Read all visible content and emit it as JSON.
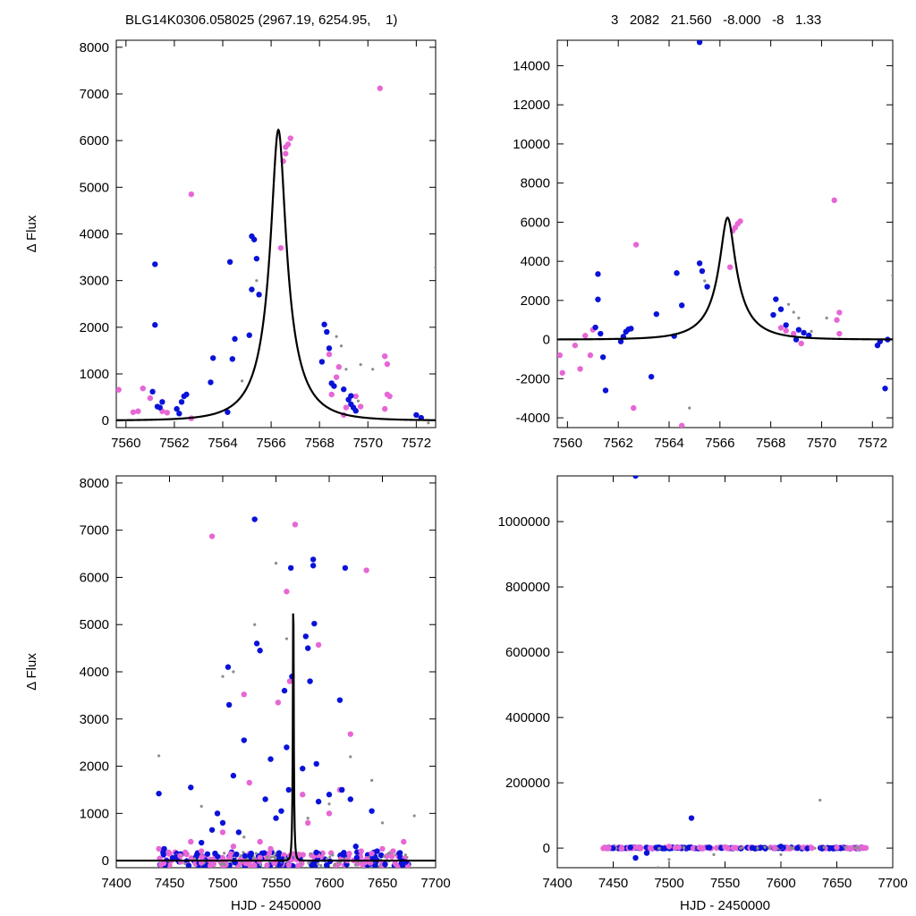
{
  "header": {
    "left": "BLG14K0306.058025 (2967.19, 6254.95,    1)",
    "right": "3   2082   21.560   -8.000   -8   1.33"
  },
  "colors": {
    "blue": "#0a12d8",
    "magenta": "#e766d5",
    "gray": "#8c8c8c",
    "curve": "#000000"
  },
  "chart_data": [
    {
      "type": "scatter",
      "panel": "top-left",
      "xlabel": "",
      "ylabel": "Δ Flux",
      "xlim": [
        7559.6,
        7572.8
      ],
      "ylim": [
        -150,
        8150
      ],
      "xticks": [
        7560,
        7562,
        7564,
        7566,
        7568,
        7570,
        7572
      ],
      "yticks": [
        0,
        1000,
        2000,
        3000,
        4000,
        5000,
        6000,
        7000,
        8000
      ],
      "model": "Paczynski peak ~6230 at HJD-2450000 = 7566.3",
      "series": [
        {
          "color": "blue",
          "points": [
            [
              7561.2,
              3350
            ],
            [
              7561.2,
              2050
            ],
            [
              7561.1,
              620
            ],
            [
              7561.3,
              300
            ],
            [
              7561.5,
              400
            ],
            [
              7561.4,
              280
            ],
            [
              7562.2,
              150
            ],
            [
              7562.3,
              400
            ],
            [
              7562.4,
              520
            ],
            [
              7562.5,
              560
            ],
            [
              7562.1,
              250
            ],
            [
              7563.5,
              820
            ],
            [
              7563.6,
              1340
            ],
            [
              7564.2,
              180
            ],
            [
              7564.3,
              3400
            ],
            [
              7564.4,
              1320
            ],
            [
              7564.5,
              1750
            ],
            [
              7565.1,
              1830
            ],
            [
              7565.2,
              2810
            ],
            [
              7565.3,
              3880
            ],
            [
              7565.4,
              3470
            ],
            [
              7565.5,
              2700
            ],
            [
              7565.2,
              3950
            ],
            [
              7568.1,
              1260
            ],
            [
              7568.2,
              2060
            ],
            [
              7568.3,
              1900
            ],
            [
              7568.4,
              1550
            ],
            [
              7568.5,
              800
            ],
            [
              7568.6,
              740
            ],
            [
              7569.0,
              670
            ],
            [
              7569.2,
              450
            ],
            [
              7569.3,
              350
            ],
            [
              7569.4,
              280
            ],
            [
              7569.5,
              210
            ],
            [
              7569.3,
              530
            ],
            [
              7572.0,
              120
            ],
            [
              7572.2,
              60
            ]
          ]
        },
        {
          "color": "magenta",
          "points": [
            [
              7559.7,
              660
            ],
            [
              7560.3,
              180
            ],
            [
              7560.5,
              200
            ],
            [
              7560.7,
              690
            ],
            [
              7561.0,
              480
            ],
            [
              7561.5,
              200
            ],
            [
              7561.7,
              170
            ],
            [
              7562.7,
              4850
            ],
            [
              7562.7,
              50
            ],
            [
              7566.5,
              5560
            ],
            [
              7566.6,
              5720
            ],
            [
              7566.7,
              5920
            ],
            [
              7566.8,
              6050
            ],
            [
              7566.6,
              5860
            ],
            [
              7566.4,
              3700
            ],
            [
              7568.4,
              1420
            ],
            [
              7568.5,
              560
            ],
            [
              7568.7,
              930
            ],
            [
              7568.8,
              1150
            ],
            [
              7569.0,
              120
            ],
            [
              7569.1,
              280
            ],
            [
              7569.5,
              520
            ],
            [
              7569.7,
              300
            ],
            [
              7570.5,
              7120
            ],
            [
              7570.7,
              1380
            ],
            [
              7570.8,
              1210
            ],
            [
              7570.8,
              560
            ],
            [
              7570.9,
              520
            ],
            [
              7570.7,
              250
            ]
          ]
        },
        {
          "color": "gray",
          "points": [
            [
              7564.8,
              850
            ],
            [
              7565.4,
              3000
            ],
            [
              7568.7,
              1800
            ],
            [
              7568.9,
              1600
            ],
            [
              7569.1,
              1100
            ],
            [
              7569.6,
              420
            ],
            [
              7569.7,
              1200
            ],
            [
              7570.2,
              1100
            ],
            [
              7572.8,
              3280
            ],
            [
              7572.5,
              -50
            ]
          ]
        }
      ]
    },
    {
      "type": "scatter",
      "panel": "top-right",
      "xlabel": "",
      "ylabel": "",
      "xlim": [
        7559.6,
        7572.8
      ],
      "ylim": [
        -4500,
        15300
      ],
      "xticks": [
        7560,
        7562,
        7564,
        7566,
        7568,
        7570,
        7572
      ],
      "yticks": [
        -4000,
        -2000,
        0,
        2000,
        4000,
        6000,
        8000,
        10000,
        12000,
        14000
      ],
      "series": [
        {
          "color": "blue",
          "points": [
            [
              7561.2,
              3350
            ],
            [
              7561.2,
              2050
            ],
            [
              7561.1,
              620
            ],
            [
              7561.3,
              300
            ],
            [
              7561.5,
              -2600
            ],
            [
              7561.4,
              -900
            ],
            [
              7562.2,
              150
            ],
            [
              7562.3,
              400
            ],
            [
              7562.4,
              520
            ],
            [
              7562.5,
              560
            ],
            [
              7562.1,
              -100
            ],
            [
              7563.3,
              -1900
            ],
            [
              7563.5,
              1300
            ],
            [
              7564.3,
              3400
            ],
            [
              7564.5,
              1750
            ],
            [
              7564.2,
              180
            ],
            [
              7565.2,
              15200
            ],
            [
              7565.2,
              3900
            ],
            [
              7565.3,
              3500
            ],
            [
              7565.5,
              2700
            ],
            [
              7568.1,
              1260
            ],
            [
              7568.2,
              2060
            ],
            [
              7568.4,
              1550
            ],
            [
              7568.6,
              740
            ],
            [
              7569.1,
              500
            ],
            [
              7569.3,
              350
            ],
            [
              7569.5,
              210
            ],
            [
              7569.0,
              0
            ],
            [
              7572.2,
              -300
            ],
            [
              7572.3,
              -100
            ],
            [
              7572.5,
              -2500
            ],
            [
              7572.6,
              0
            ]
          ]
        },
        {
          "color": "magenta",
          "points": [
            [
              7559.7,
              -800
            ],
            [
              7559.8,
              -1700
            ],
            [
              7560.3,
              -300
            ],
            [
              7560.5,
              -1500
            ],
            [
              7560.7,
              200
            ],
            [
              7561.0,
              500
            ],
            [
              7560.9,
              -800
            ],
            [
              7562.7,
              4850
            ],
            [
              7562.6,
              -3500
            ],
            [
              7564.5,
              -4400
            ],
            [
              7566.5,
              5560
            ],
            [
              7566.6,
              5720
            ],
            [
              7566.7,
              5920
            ],
            [
              7566.8,
              6050
            ],
            [
              7566.4,
              3700
            ],
            [
              7568.4,
              600
            ],
            [
              7568.6,
              450
            ],
            [
              7568.9,
              300
            ],
            [
              7569.2,
              -200
            ],
            [
              7570.5,
              7120
            ],
            [
              7570.7,
              1380
            ],
            [
              7570.7,
              300
            ],
            [
              7570.6,
              1000
            ]
          ]
        },
        {
          "color": "gray",
          "points": [
            [
              7564.8,
              -3500
            ],
            [
              7565.4,
              3000
            ],
            [
              7568.7,
              1800
            ],
            [
              7568.9,
              1400
            ],
            [
              7569.1,
              1100
            ],
            [
              7569.6,
              420
            ],
            [
              7570.2,
              1100
            ],
            [
              7572.8,
              3280
            ],
            [
              7572.9,
              -1600
            ]
          ]
        }
      ]
    },
    {
      "type": "scatter",
      "panel": "bottom-left",
      "xlabel": "HJD - 2450000",
      "ylabel": "Δ Flux",
      "xlim": [
        7400,
        7700
      ],
      "ylim": [
        -150,
        8150
      ],
      "xticks": [
        7400,
        7450,
        7500,
        7550,
        7600,
        7650,
        7700
      ],
      "yticks": [
        0,
        1000,
        2000,
        3000,
        4000,
        5000,
        6000,
        7000,
        8000
      ],
      "series": [
        {
          "color": "blue",
          "points": [
            [
              7440,
              1420
            ],
            [
              7445,
              250
            ],
            [
              7470,
              1550
            ],
            [
              7480,
              380
            ],
            [
              7490,
              650
            ],
            [
              7495,
              1000
            ],
            [
              7500,
              800
            ],
            [
              7505,
              4100
            ],
            [
              7506,
              3300
            ],
            [
              7510,
              1800
            ],
            [
              7515,
              600
            ],
            [
              7520,
              2550
            ],
            [
              7530,
              7230
            ],
            [
              7532,
              4600
            ],
            [
              7535,
              4450
            ],
            [
              7540,
              1300
            ],
            [
              7545,
              2150
            ],
            [
              7550,
              900
            ],
            [
              7555,
              1050
            ],
            [
              7558,
              3600
            ],
            [
              7560,
              2400
            ],
            [
              7562,
              1500
            ],
            [
              7564,
              6200
            ],
            [
              7565,
              3900
            ],
            [
              7575,
              1950
            ],
            [
              7578,
              4750
            ],
            [
              7580,
              4500
            ],
            [
              7582,
              3800
            ],
            [
              7585,
              6380
            ],
            [
              7585,
              6250
            ],
            [
              7586,
              5020
            ],
            [
              7588,
              2050
            ],
            [
              7590,
              1250
            ],
            [
              7600,
              1400
            ],
            [
              7610,
              3400
            ],
            [
              7612,
              1500
            ],
            [
              7615,
              6200
            ],
            [
              7620,
              1300
            ],
            [
              7625,
              300
            ],
            [
              7640,
              1050
            ],
            [
              7645,
              200
            ],
            [
              7668,
              -50
            ],
            [
              7672,
              -30
            ]
          ]
        },
        {
          "color": "magenta",
          "points": [
            [
              7440,
              250
            ],
            [
              7450,
              150
            ],
            [
              7460,
              100
            ],
            [
              7470,
              400
            ],
            [
              7480,
              200
            ],
            [
              7490,
              6870
            ],
            [
              7495,
              1000
            ],
            [
              7500,
              600
            ],
            [
              7510,
              300
            ],
            [
              7520,
              3520
            ],
            [
              7525,
              1650
            ],
            [
              7535,
              400
            ],
            [
              7545,
              250
            ],
            [
              7552,
              3350
            ],
            [
              7560,
              5700
            ],
            [
              7563,
              3800
            ],
            [
              7568,
              7120
            ],
            [
              7575,
              1400
            ],
            [
              7580,
              800
            ],
            [
              7590,
              4570
            ],
            [
              7600,
              1000
            ],
            [
              7610,
              1500
            ],
            [
              7620,
              2680
            ],
            [
              7630,
              200
            ],
            [
              7635,
              6150
            ],
            [
              7640,
              150
            ],
            [
              7650,
              250
            ],
            [
              7660,
              200
            ],
            [
              7670,
              400
            ]
          ]
        },
        {
          "color": "gray",
          "points": [
            [
              7440,
              2220
            ],
            [
              7460,
              100
            ],
            [
              7480,
              1150
            ],
            [
              7500,
              3900
            ],
            [
              7510,
              4000
            ],
            [
              7520,
              500
            ],
            [
              7530,
              5000
            ],
            [
              7550,
              6300
            ],
            [
              7560,
              4700
            ],
            [
              7580,
              900
            ],
            [
              7600,
              1200
            ],
            [
              7620,
              2200
            ],
            [
              7640,
              1700
            ],
            [
              7650,
              800
            ],
            [
              7680,
              950
            ]
          ]
        }
      ]
    },
    {
      "type": "scatter",
      "panel": "bottom-right",
      "xlabel": "HJD - 2450000",
      "ylabel": "",
      "xlim": [
        7400,
        7700
      ],
      "ylim": [
        -60000,
        1140000
      ],
      "xticks": [
        7400,
        7450,
        7500,
        7550,
        7600,
        7650,
        7700
      ],
      "yticks": [
        0,
        200000,
        400000,
        600000,
        800000,
        1000000
      ],
      "series": [
        {
          "color": "blue",
          "points": [
            [
              7470,
              1140000
            ],
            [
              7520,
              92000
            ],
            [
              7470,
              -30000
            ],
            [
              7480,
              -15000
            ],
            [
              7600,
              5000
            ]
          ]
        },
        {
          "color": "magenta",
          "points": [
            [
              7500,
              5000
            ],
            [
              7550,
              3000
            ],
            [
              7600,
              4000
            ],
            [
              7650,
              2000
            ]
          ]
        },
        {
          "color": "gray",
          "points": [
            [
              7635,
              147000
            ],
            [
              7490,
              -60000
            ],
            [
              7500,
              -35000
            ],
            [
              7540,
              -20000
            ],
            [
              7600,
              -20000
            ]
          ]
        }
      ]
    }
  ]
}
